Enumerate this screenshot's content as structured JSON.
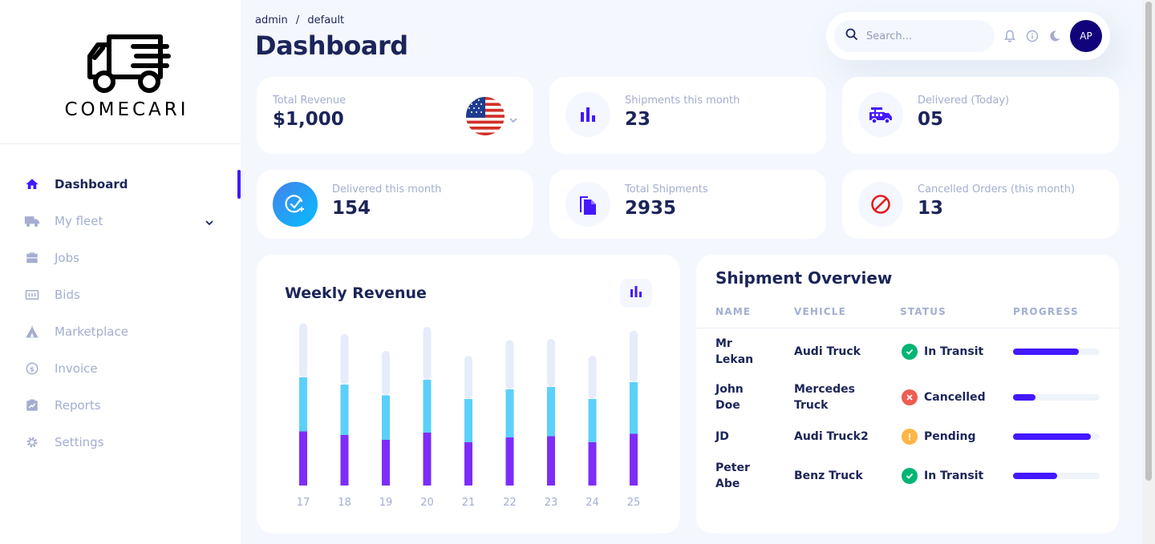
{
  "brand": {
    "name": "COMECARI"
  },
  "sidebar": {
    "items": [
      {
        "label": "Dashboard",
        "icon": "home-icon",
        "active": true
      },
      {
        "label": "My fleet",
        "icon": "truck-icon",
        "has_submenu": true
      },
      {
        "label": "Jobs",
        "icon": "briefcase-icon"
      },
      {
        "label": "Bids",
        "icon": "bids-icon"
      },
      {
        "label": "Marketplace",
        "icon": "tent-icon"
      },
      {
        "label": "Invoice",
        "icon": "invoice-icon"
      },
      {
        "label": "Reports",
        "icon": "reports-icon"
      },
      {
        "label": "Settings",
        "icon": "gear-icon"
      }
    ]
  },
  "header": {
    "breadcrumb": [
      "admin",
      "/",
      "default"
    ],
    "title": "Dashboard",
    "search_placeholder": "Search...",
    "avatar_initials": "AP"
  },
  "stats": [
    {
      "label": "Total Revenue",
      "value": "$1,000",
      "icon": "us-flag-icon"
    },
    {
      "label": "Shipments this month",
      "value": "23",
      "icon": "bar-chart-icon"
    },
    {
      "label": "Delivered (Today)",
      "value": "05",
      "icon": "fire-truck-icon"
    },
    {
      "label": "Delivered this month",
      "value": "154",
      "icon": "check-circle-icon"
    },
    {
      "label": "Total Shipments",
      "value": "2935",
      "icon": "documents-icon"
    },
    {
      "label": "Cancelled Orders (this month)",
      "value": "13",
      "icon": "cancel-icon"
    }
  ],
  "chart_data": {
    "type": "bar",
    "title": "Weekly Revenue",
    "categories": [
      "17",
      "18",
      "19",
      "20",
      "21",
      "22",
      "23",
      "24",
      "25"
    ],
    "series": [
      {
        "values": [
          45,
          42,
          38,
          44,
          36,
          40,
          41,
          36,
          43
        ],
        "color": "#7e2df8"
      },
      {
        "values": [
          45,
          42,
          37,
          44,
          36,
          40,
          41,
          36,
          43
        ],
        "color": "#5bd0fa"
      },
      {
        "values": [
          45,
          42,
          37,
          44,
          36,
          41,
          40,
          36,
          43
        ],
        "color": "#e6ecfa"
      }
    ],
    "stacked": true,
    "ylim": [
      0,
      150
    ],
    "grid": false
  },
  "shipments": {
    "title": "Shipment Overview",
    "columns": [
      "NAME",
      "VEHICLE",
      "STATUS",
      "PROGRESS"
    ],
    "rows": [
      {
        "name": [
          "Mr",
          "Lekan"
        ],
        "vehicle": [
          "Audi Truck"
        ],
        "status": "In Transit",
        "status_type": "success",
        "progress": 0.76
      },
      {
        "name": [
          "John",
          "Doe"
        ],
        "vehicle": [
          "Mercedes",
          "Truck"
        ],
        "status": "Cancelled",
        "status_type": "error",
        "progress": 0.26
      },
      {
        "name": [
          "JD"
        ],
        "vehicle": [
          "Audi Truck2"
        ],
        "status": "Pending",
        "status_type": "warning",
        "progress": 0.9
      },
      {
        "name": [
          "Peter",
          "Abe"
        ],
        "vehicle": [
          "Benz Truck"
        ],
        "status": "In Transit",
        "status_type": "success",
        "progress": 0.51
      }
    ]
  },
  "colors": {
    "accent": "#4318ff",
    "navy": "#1b2559",
    "muted": "#a3aed0",
    "background": "#f4f7fe",
    "success": "#01b574",
    "error": "#ee5d50",
    "warning": "#ffb547"
  }
}
